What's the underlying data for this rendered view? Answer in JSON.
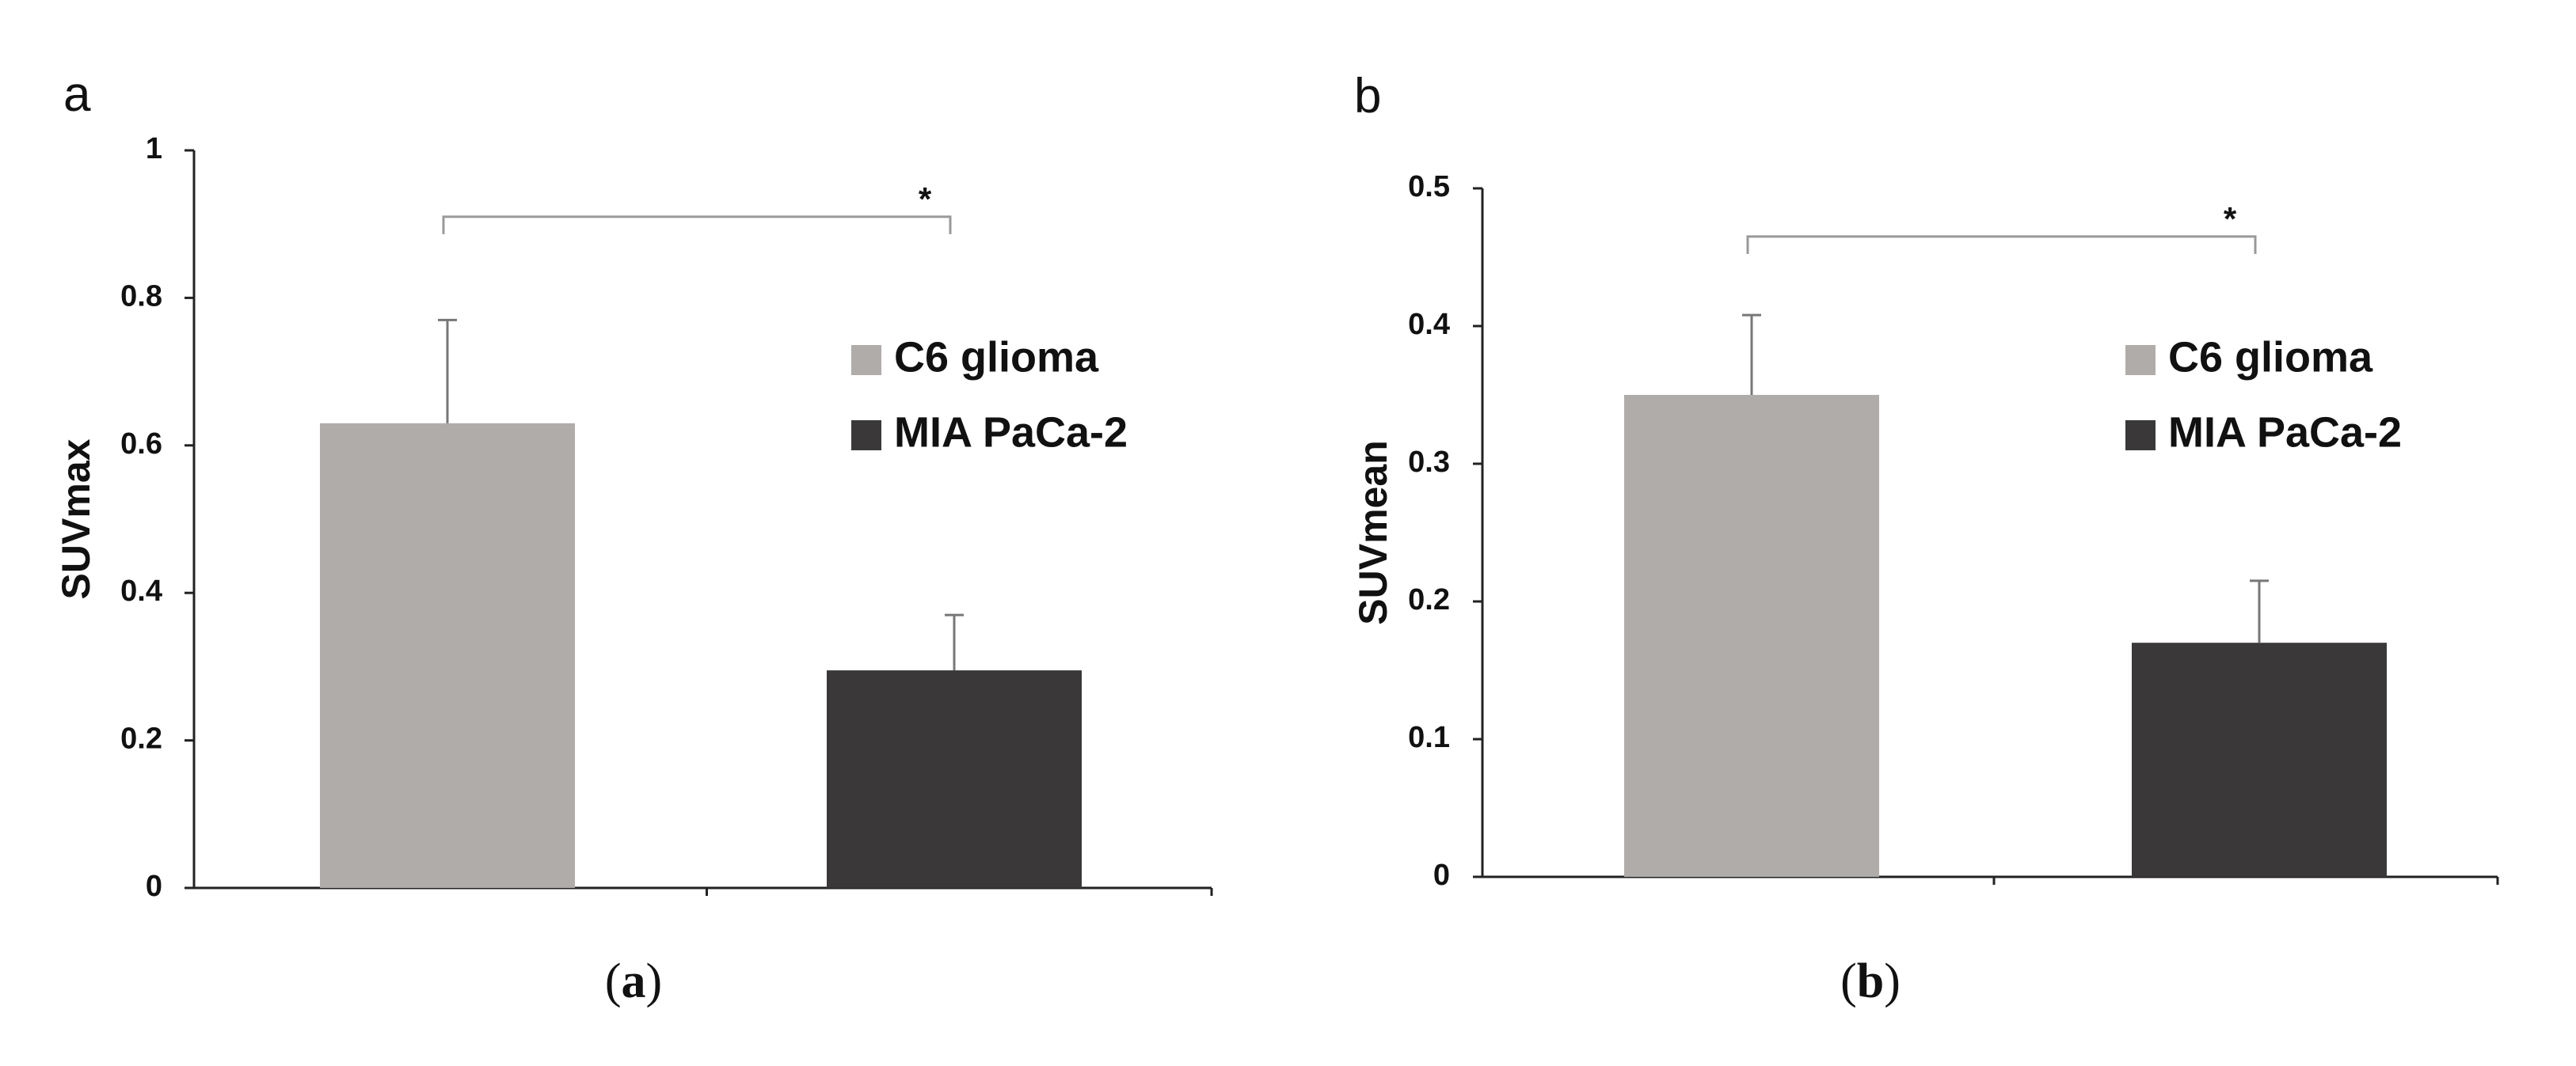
{
  "chart_data": [
    {
      "type": "bar",
      "panel_letter": "a",
      "caption_letter": "a",
      "ylabel": "SUVmax",
      "ylim": [
        0,
        1
      ],
      "yticks": [
        0,
        0.2,
        0.4,
        0.6,
        0.8,
        1
      ],
      "ytick_labels": [
        "0",
        "0.2",
        "0.4",
        "0.6",
        "0.8",
        "1"
      ],
      "categories": [
        "C6 glioma",
        "MIA PaCa-2"
      ],
      "values": [
        0.63,
        0.295
      ],
      "errors": [
        0.14,
        0.075
      ],
      "colors": [
        "#b0acaa",
        "#3a3838"
      ],
      "legend": [
        "C6 glioma",
        "MIA PaCa-2"
      ],
      "significance": {
        "label": "*",
        "bracket_y": 0.91
      }
    },
    {
      "type": "bar",
      "panel_letter": "b",
      "caption_letter": "b",
      "ylabel": "SUVmean",
      "ylim": [
        0,
        0.5
      ],
      "yticks": [
        0,
        0.1,
        0.2,
        0.3,
        0.4,
        0.5
      ],
      "ytick_labels": [
        "0",
        "0.1",
        "0.2",
        "0.3",
        "0.4",
        "0.5"
      ],
      "categories": [
        "C6 glioma",
        "MIA PaCa-2"
      ],
      "values": [
        0.35,
        0.17
      ],
      "errors": [
        0.058,
        0.045
      ],
      "colors": [
        "#b0acaa",
        "#3a3838"
      ],
      "legend": [
        "C6 glioma",
        "MIA PaCa-2"
      ],
      "significance": {
        "label": "*",
        "bracket_y": 0.465
      }
    }
  ]
}
